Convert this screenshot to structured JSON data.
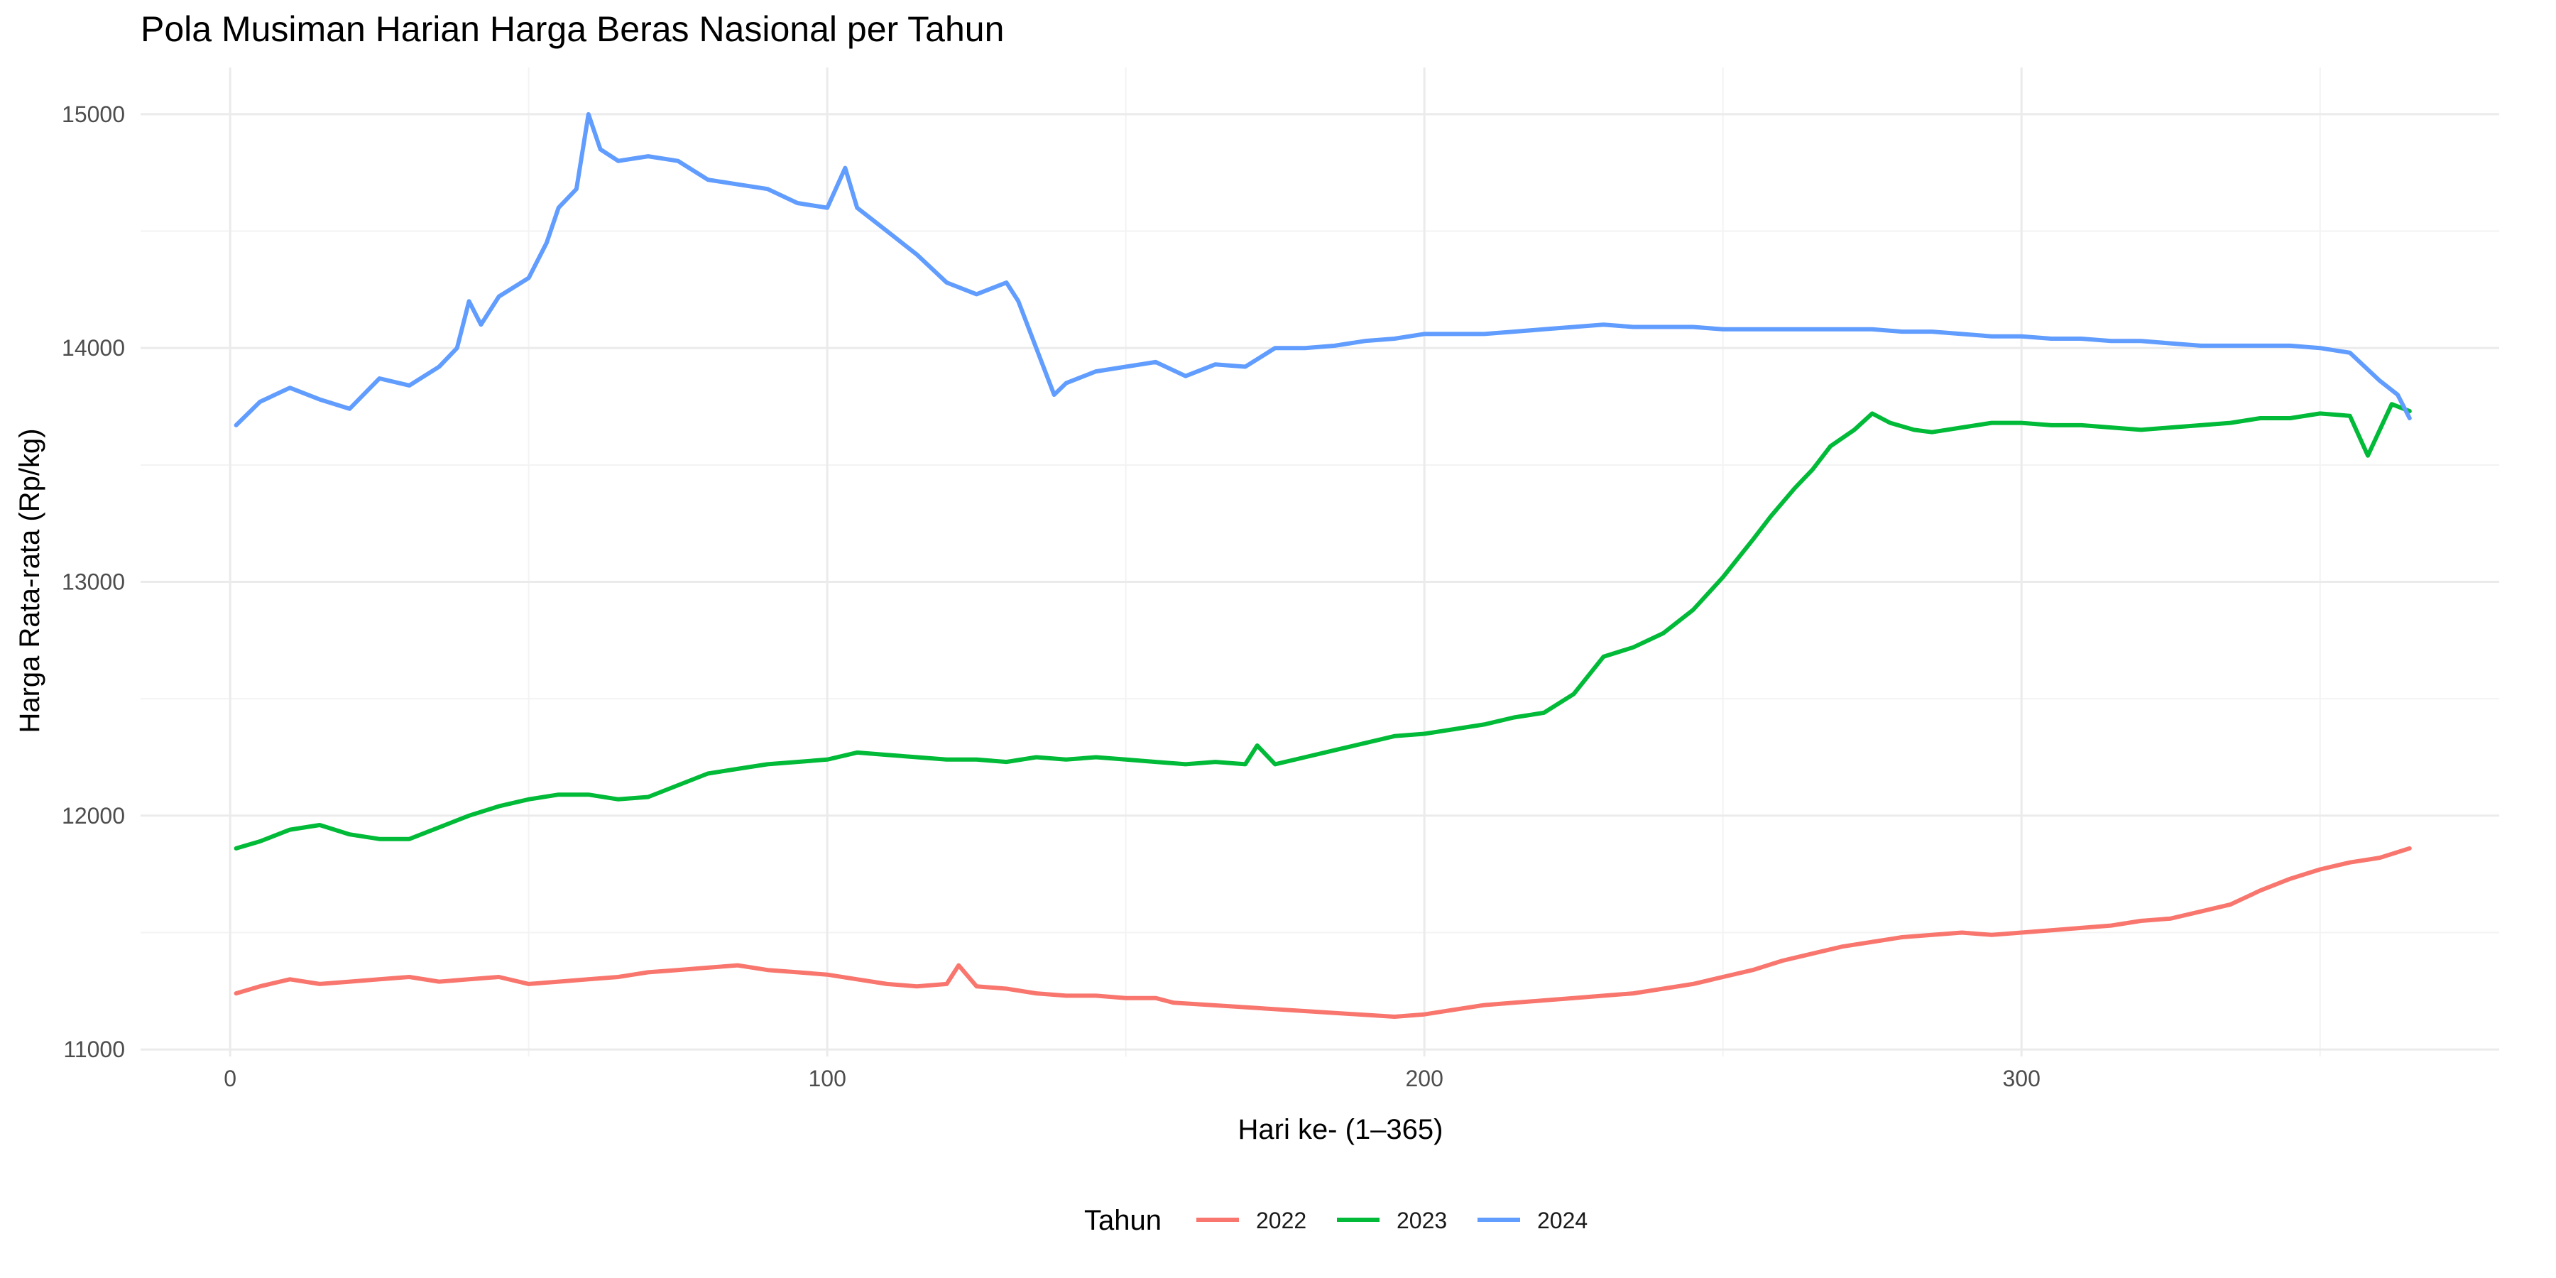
{
  "chart_data": {
    "type": "line",
    "title": "Pola Musiman Harian Harga Beras Nasional per Tahun",
    "xlabel": "Hari ke- (1–365)",
    "ylabel": "Harga Rata-rata (Rp/kg)",
    "xlim": [
      -15,
      380
    ],
    "ylim": [
      10970,
      15200
    ],
    "x_ticks": [
      0,
      100,
      200,
      300
    ],
    "y_ticks": [
      11000,
      12000,
      13000,
      14000,
      15000
    ],
    "grid": true,
    "legend": {
      "title": "Tahun",
      "position": "bottom"
    },
    "series": [
      {
        "name": "2022",
        "color": "#F8766D",
        "x": [
          1,
          5,
          10,
          15,
          20,
          25,
          30,
          35,
          40,
          45,
          50,
          55,
          60,
          65,
          70,
          75,
          80,
          85,
          90,
          95,
          100,
          105,
          110,
          115,
          120,
          122,
          125,
          130,
          135,
          140,
          145,
          150,
          155,
          158,
          195,
          200,
          205,
          210,
          215,
          220,
          225,
          230,
          235,
          240,
          245,
          250,
          255,
          260,
          265,
          270,
          275,
          280,
          285,
          290,
          295,
          300,
          305,
          310,
          315,
          320,
          325,
          330,
          335,
          340,
          345,
          350,
          355,
          360,
          365
        ],
        "y": [
          11240,
          11270,
          11300,
          11280,
          11290,
          11300,
          11310,
          11290,
          11300,
          11310,
          11280,
          11290,
          11300,
          11310,
          11330,
          11340,
          11350,
          11360,
          11340,
          11330,
          11320,
          11300,
          11280,
          11270,
          11280,
          11360,
          11270,
          11260,
          11240,
          11230,
          11230,
          11220,
          11220,
          11200,
          11140,
          11150,
          11170,
          11190,
          11200,
          11210,
          11220,
          11230,
          11240,
          11260,
          11280,
          11310,
          11340,
          11380,
          11410,
          11440,
          11460,
          11480,
          11490,
          11500,
          11490,
          11500,
          11510,
          11520,
          11530,
          11550,
          11560,
          11590,
          11620,
          11680,
          11730,
          11770,
          11800,
          11820,
          11860
        ]
      },
      {
        "name": "2023",
        "color": "#00BA38",
        "x": [
          1,
          5,
          10,
          15,
          20,
          25,
          30,
          35,
          40,
          45,
          50,
          55,
          60,
          65,
          70,
          75,
          80,
          85,
          90,
          95,
          100,
          105,
          110,
          115,
          120,
          125,
          130,
          135,
          140,
          145,
          150,
          155,
          160,
          165,
          170,
          172,
          175,
          180,
          185,
          190,
          195,
          200,
          205,
          210,
          215,
          220,
          225,
          230,
          235,
          240,
          245,
          250,
          255,
          258,
          262,
          265,
          268,
          272,
          275,
          278,
          282,
          285,
          290,
          295,
          300,
          305,
          310,
          315,
          320,
          325,
          330,
          335,
          340,
          345,
          350,
          355,
          358,
          362,
          365
        ],
        "y": [
          11860,
          11890,
          11940,
          11960,
          11920,
          11900,
          11900,
          11950,
          12000,
          12040,
          12070,
          12090,
          12090,
          12070,
          12080,
          12130,
          12180,
          12200,
          12220,
          12230,
          12240,
          12270,
          12260,
          12250,
          12240,
          12240,
          12230,
          12250,
          12240,
          12250,
          12240,
          12230,
          12220,
          12230,
          12220,
          12300,
          12220,
          12250,
          12280,
          12310,
          12340,
          12350,
          12370,
          12390,
          12420,
          12440,
          12520,
          12680,
          12720,
          12780,
          12880,
          13020,
          13180,
          13280,
          13400,
          13480,
          13580,
          13650,
          13720,
          13680,
          13650,
          13640,
          13660,
          13680,
          13680,
          13670,
          13670,
          13660,
          13650,
          13660,
          13670,
          13680,
          13700,
          13700,
          13720,
          13710,
          13540,
          13760,
          13730
        ]
      },
      {
        "name": "2024",
        "color": "#619CFF",
        "x": [
          1,
          5,
          10,
          15,
          20,
          25,
          30,
          35,
          38,
          40,
          42,
          45,
          50,
          53,
          55,
          58,
          60,
          62,
          65,
          70,
          75,
          80,
          85,
          90,
          95,
          100,
          103,
          105,
          110,
          115,
          120,
          125,
          130,
          132,
          135,
          138,
          140,
          145,
          150,
          155,
          160,
          165,
          170,
          175,
          180,
          185,
          190,
          195,
          200,
          205,
          210,
          215,
          220,
          225,
          230,
          235,
          240,
          245,
          250,
          255,
          260,
          265,
          270,
          275,
          280,
          285,
          290,
          295,
          300,
          305,
          310,
          315,
          320,
          325,
          330,
          335,
          340,
          345,
          350,
          355,
          360,
          363,
          365
        ],
        "y": [
          13670,
          13770,
          13830,
          13780,
          13740,
          13870,
          13840,
          13920,
          14000,
          14200,
          14100,
          14220,
          14300,
          14450,
          14600,
          14680,
          15000,
          14850,
          14800,
          14820,
          14800,
          14720,
          14700,
          14680,
          14620,
          14600,
          14770,
          14600,
          14500,
          14400,
          14280,
          14230,
          14280,
          14200,
          14000,
          13800,
          13850,
          13900,
          13920,
          13940,
          13880,
          13930,
          13920,
          14000,
          14000,
          14010,
          14030,
          14040,
          14060,
          14060,
          14060,
          14070,
          14080,
          14090,
          14100,
          14090,
          14090,
          14090,
          14080,
          14080,
          14080,
          14080,
          14080,
          14080,
          14070,
          14070,
          14060,
          14050,
          14050,
          14040,
          14040,
          14030,
          14030,
          14020,
          14010,
          14010,
          14010,
          14010,
          14000,
          13980,
          13860,
          13800,
          13700
        ]
      }
    ]
  }
}
